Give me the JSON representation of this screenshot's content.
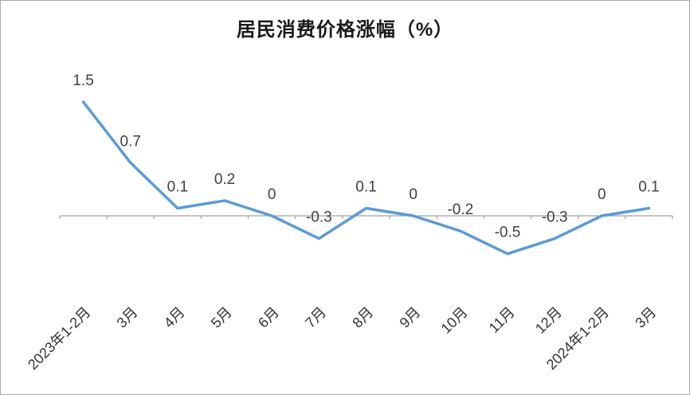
{
  "chart": {
    "title": "居民消费价格涨幅（%）"
  },
  "chart_data": {
    "type": "line",
    "title": "居民消费价格涨幅（%）",
    "categories": [
      "2023年1-2月",
      "3月",
      "4月",
      "5月",
      "6月",
      "7月",
      "8月",
      "9月",
      "10月",
      "11月",
      "12月",
      "2024年1-2月",
      "3月"
    ],
    "values": [
      1.5,
      0.7,
      0.1,
      0.2,
      0,
      -0.3,
      0.1,
      0,
      -0.2,
      -0.5,
      -0.3,
      0,
      0.1
    ],
    "value_labels": [
      "1.5",
      "0.7",
      "0.1",
      "0.2",
      "0",
      "-0.3",
      "0.1",
      "0",
      "-0.2",
      "-0.5",
      "-0.3",
      "0",
      "0.1"
    ],
    "xlabel": "",
    "ylabel": "",
    "ylim": [
      -1.0,
      2.0
    ],
    "grid": false,
    "legend": false,
    "y_axis_visible": false,
    "data_labels_position": "above",
    "x_tick_label_rotation_deg": 45,
    "line_color": "#5B9BD5",
    "axis_color": "#A0A0A0",
    "data_label_color": "#404040",
    "tick_label_color": "#333333"
  }
}
